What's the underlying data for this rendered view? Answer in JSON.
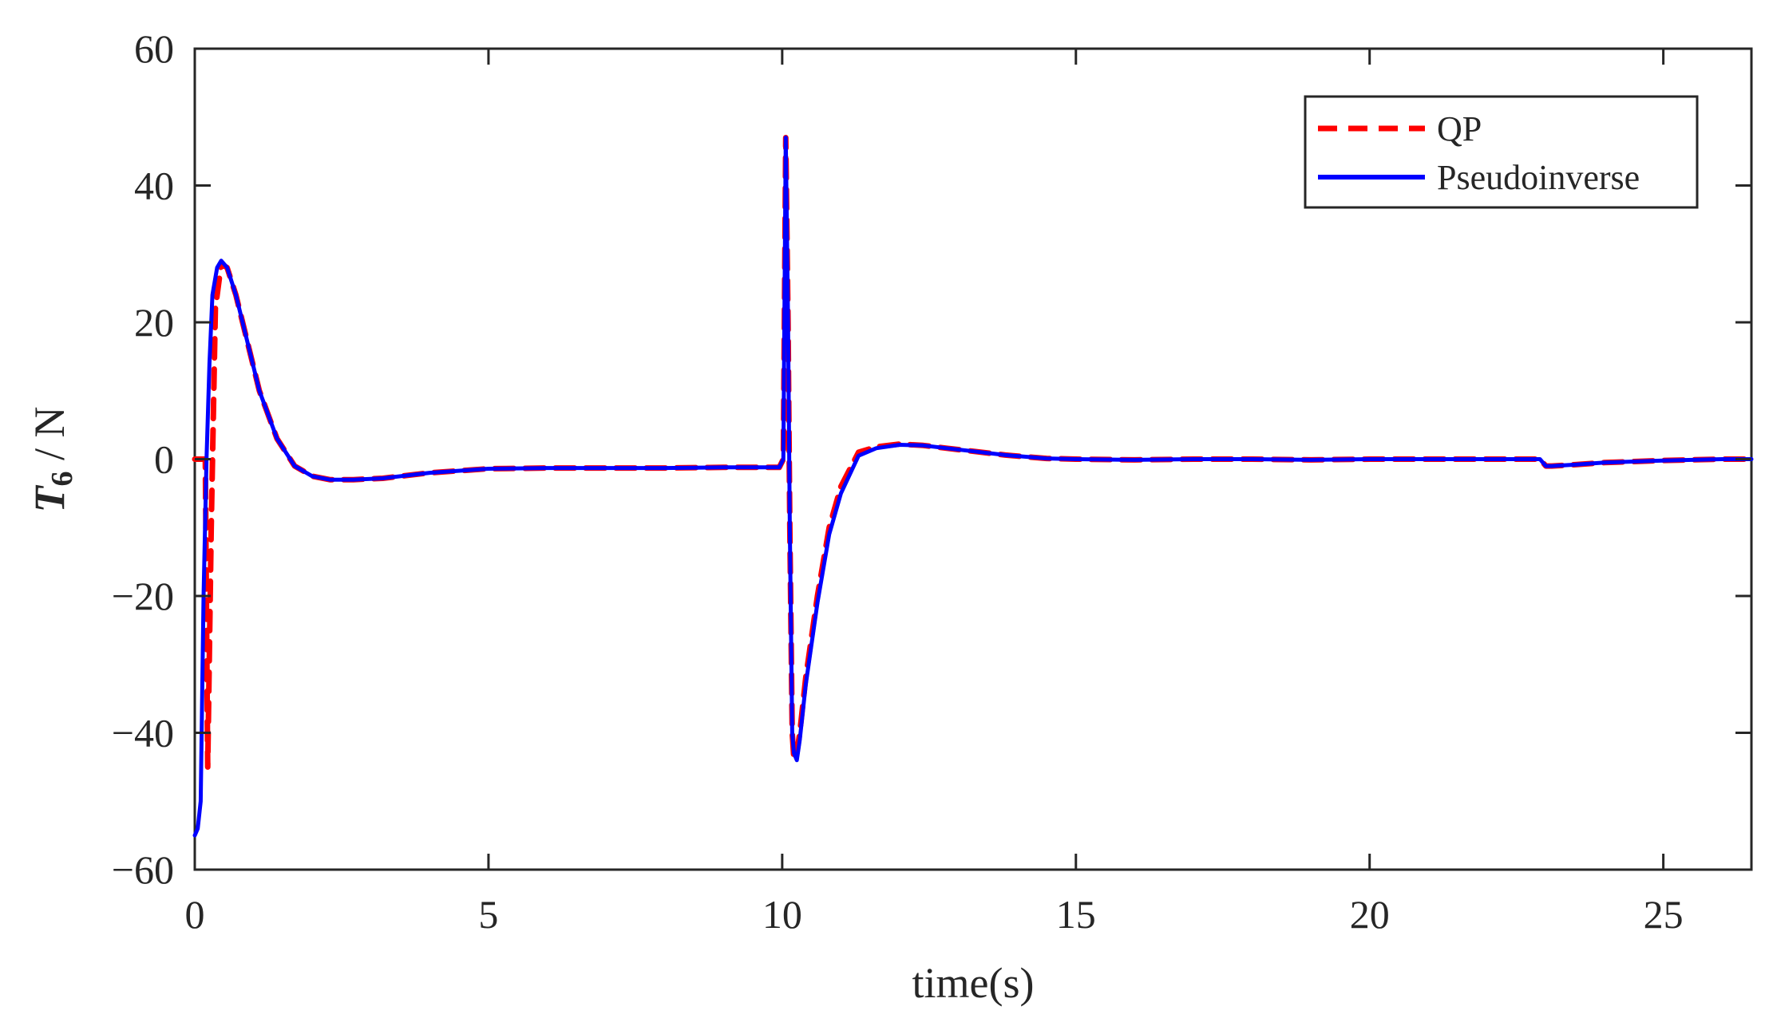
{
  "chart_data": {
    "type": "line",
    "xlabel": "time(s)",
    "ylabel": {
      "main": "T",
      "sub": "6",
      "rest": " / N"
    },
    "xlim": [
      0,
      26.5
    ],
    "ylim": [
      -60,
      60
    ],
    "xticks": [
      0,
      5,
      10,
      15,
      20,
      25
    ],
    "yticks": [
      -60,
      -40,
      -20,
      0,
      20,
      40,
      60
    ],
    "xtick_labels": [
      "0",
      "5",
      "10",
      "15",
      "20",
      "25"
    ],
    "ytick_labels": [
      "−60",
      "−40",
      "−20",
      "0",
      "20",
      "40",
      "60"
    ],
    "grid": false,
    "legend_position": "top-right",
    "series": [
      {
        "name": "QP",
        "color": "#ff0000",
        "style": "dashed",
        "x": [
          0,
          0.1,
          0.18,
          0.22,
          0.28,
          0.35,
          0.45,
          0.55,
          0.7,
          0.9,
          1.1,
          1.4,
          1.7,
          2.0,
          2.3,
          2.7,
          3.2,
          4.0,
          5.0,
          6.0,
          7.0,
          8.0,
          9.0,
          9.95,
          10.02,
          10.06,
          10.1,
          10.13,
          10.17,
          10.2,
          10.25,
          10.3,
          10.4,
          10.6,
          10.8,
          11.0,
          11.3,
          11.6,
          12.0,
          12.4,
          12.8,
          13.2,
          13.8,
          14.5,
          15.0,
          16.0,
          17.0,
          18.0,
          19.0,
          20.0,
          21.0,
          22.0,
          22.9,
          23.0,
          23.1,
          23.5,
          24.0,
          25.0,
          26.0,
          26.5
        ],
        "y": [
          0,
          0,
          0,
          -45,
          -10,
          22,
          28.5,
          28,
          24,
          17,
          10,
          3,
          -1,
          -2.5,
          -3,
          -3,
          -2.8,
          -2,
          -1.4,
          -1.3,
          -1.3,
          -1.3,
          -1.2,
          -1.2,
          0,
          47,
          20,
          -10,
          -40,
          -44,
          -43,
          -40,
          -32,
          -20,
          -10,
          -4,
          1,
          1.8,
          2.2,
          2,
          1.6,
          1.2,
          0.6,
          0.1,
          0,
          -0.1,
          0,
          0,
          -0.1,
          0,
          0,
          0,
          0,
          -1,
          -1,
          -0.8,
          -0.5,
          -0.2,
          0,
          0
        ]
      },
      {
        "name": "Pseudoinverse",
        "color": "#0000ff",
        "style": "solid",
        "x": [
          0,
          0.05,
          0.1,
          0.15,
          0.2,
          0.25,
          0.3,
          0.38,
          0.45,
          0.55,
          0.7,
          0.9,
          1.1,
          1.4,
          1.7,
          2.0,
          2.3,
          2.7,
          3.2,
          4.0,
          5.0,
          6.0,
          7.0,
          8.0,
          9.0,
          9.95,
          10.02,
          10.06,
          10.1,
          10.13,
          10.17,
          10.2,
          10.25,
          10.3,
          10.4,
          10.6,
          10.8,
          11.0,
          11.3,
          11.6,
          12.0,
          12.4,
          12.8,
          13.2,
          13.8,
          14.5,
          15.0,
          16.0,
          17.0,
          18.0,
          19.0,
          20.0,
          21.0,
          22.0,
          22.9,
          23.0,
          23.1,
          23.5,
          24.0,
          25.0,
          26.0,
          26.5
        ],
        "y": [
          -55,
          -54,
          -50,
          -20,
          0,
          14,
          24,
          28,
          29,
          28,
          24,
          17,
          10,
          3,
          -1,
          -2.5,
          -3,
          -3,
          -2.8,
          -2,
          -1.4,
          -1.3,
          -1.3,
          -1.3,
          -1.2,
          -1.2,
          0,
          47,
          20,
          -10,
          -40,
          -43,
          -44,
          -41,
          -33,
          -21,
          -11,
          -5,
          0.5,
          1.6,
          2.1,
          2,
          1.6,
          1.2,
          0.6,
          0.1,
          0,
          -0.1,
          0,
          0,
          -0.1,
          0,
          0,
          0,
          0,
          -1,
          -1,
          -0.8,
          -0.5,
          -0.2,
          0,
          0
        ]
      }
    ]
  }
}
